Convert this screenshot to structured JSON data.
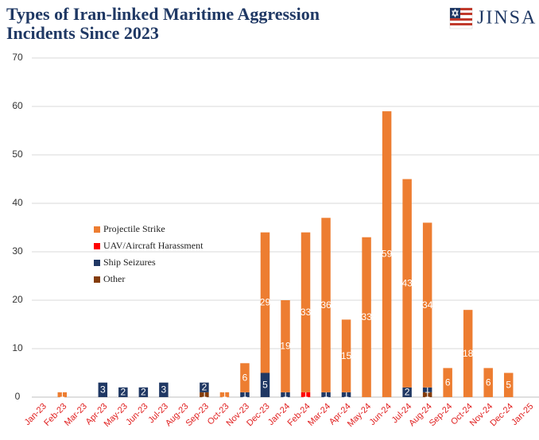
{
  "chart_data": {
    "type": "stacked_bar",
    "title": [
      "Types of Iran-linked Maritime Aggression",
      "Incidents Since 2023"
    ],
    "logo": "JINSA",
    "categories": [
      "Jan-23",
      "Feb-23",
      "Mar-23",
      "Apr-23",
      "May-23",
      "Jun-23",
      "Jul-23",
      "Aug-23",
      "Sep-23",
      "Oct-23",
      "Nov-23",
      "Dec-23",
      "Jan-24",
      "Feb-24",
      "Mar-24",
      "Apr-24",
      "May-24",
      "Jun-24",
      "Jul-24",
      "Aug-24",
      "Sep-24",
      "Oct-24",
      "Nov-24",
      "Dec-24",
      "Jan-25"
    ],
    "series": [
      {
        "name": "Other",
        "color": "#843c0c",
        "values": [
          0,
          0,
          0,
          0,
          0,
          0,
          0,
          0,
          1,
          0,
          0,
          0,
          0,
          0,
          0,
          0,
          0,
          0,
          0,
          1,
          0,
          0,
          0,
          0,
          0
        ]
      },
      {
        "name": "Ship Seizures",
        "color": "#203864",
        "values": [
          0,
          0,
          0,
          3,
          2,
          2,
          3,
          0,
          2,
          0,
          1,
          5,
          1,
          0,
          1,
          1,
          0,
          0,
          2,
          1,
          0,
          0,
          0,
          0,
          0
        ]
      },
      {
        "name": "UAV/Aircraft Harassment",
        "color": "#ff0000",
        "values": [
          0,
          0,
          0,
          0,
          0,
          0,
          0,
          0,
          0,
          0,
          0,
          0,
          0,
          1,
          0,
          0,
          0,
          0,
          0,
          0,
          0,
          0,
          0,
          0,
          0
        ]
      },
      {
        "name": "Projectile Strike",
        "color": "#ed7d31",
        "values": [
          0,
          1,
          0,
          0,
          0,
          0,
          0,
          0,
          0,
          1,
          6,
          29,
          19,
          33,
          36,
          15,
          33,
          59,
          43,
          34,
          6,
          18,
          6,
          5,
          0
        ]
      }
    ],
    "legend_order": [
      3,
      2,
      1,
      0
    ],
    "ylim": [
      0,
      70
    ],
    "yticks": [
      0,
      10,
      20,
      30,
      40,
      50,
      60,
      70
    ],
    "grid": true
  }
}
